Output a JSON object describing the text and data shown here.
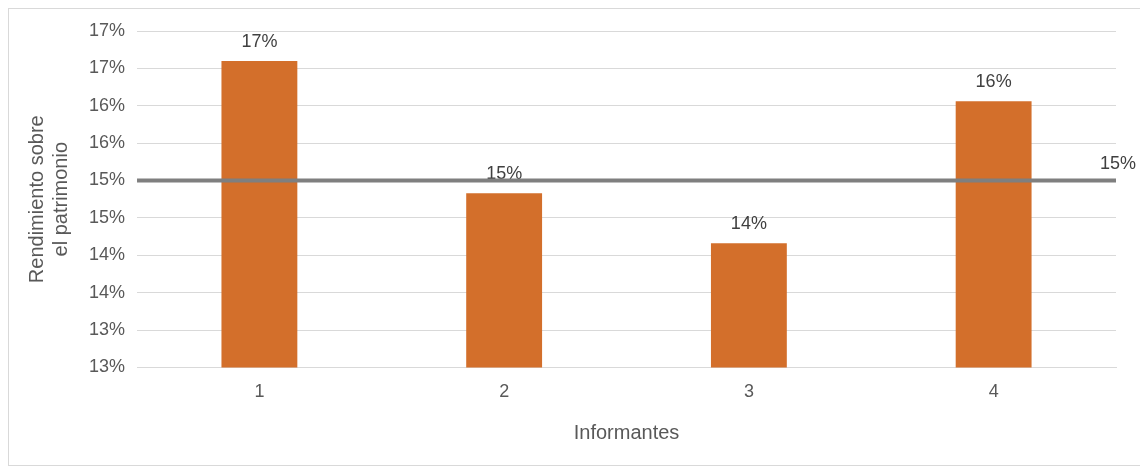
{
  "chart_data": {
    "type": "bar",
    "xlabel": "Informantes",
    "ylabel": "Rendimiento sobre el patrimonio",
    "categories": [
      "1",
      "2",
      "3",
      "4"
    ],
    "series": [
      {
        "color": "#d36f2b",
        "values": [
          16.6,
          14.83,
          14.16,
          16.06
        ],
        "value_labels": [
          "17%",
          "15%",
          "14%",
          "16%"
        ]
      }
    ],
    "ylim": [
      12.5,
      17
    ],
    "yticks": [
      {
        "value": 12.5,
        "label": "13%"
      },
      {
        "value": 13,
        "label": "13%"
      },
      {
        "value": 13.5,
        "label": "14%"
      },
      {
        "value": 14,
        "label": "14%"
      },
      {
        "value": 14.5,
        "label": "15%"
      },
      {
        "value": 15,
        "label": "15%"
      },
      {
        "value": 15.5,
        "label": "16%"
      },
      {
        "value": 16,
        "label": "16%"
      },
      {
        "value": 16.5,
        "label": "17%"
      },
      {
        "value": 17,
        "label": "17%"
      }
    ],
    "ref_lines": [
      {
        "axis": "y",
        "value": 15,
        "label": "15%",
        "color": "#7f7f7f"
      }
    ],
    "grid": "y",
    "legend": false
  }
}
